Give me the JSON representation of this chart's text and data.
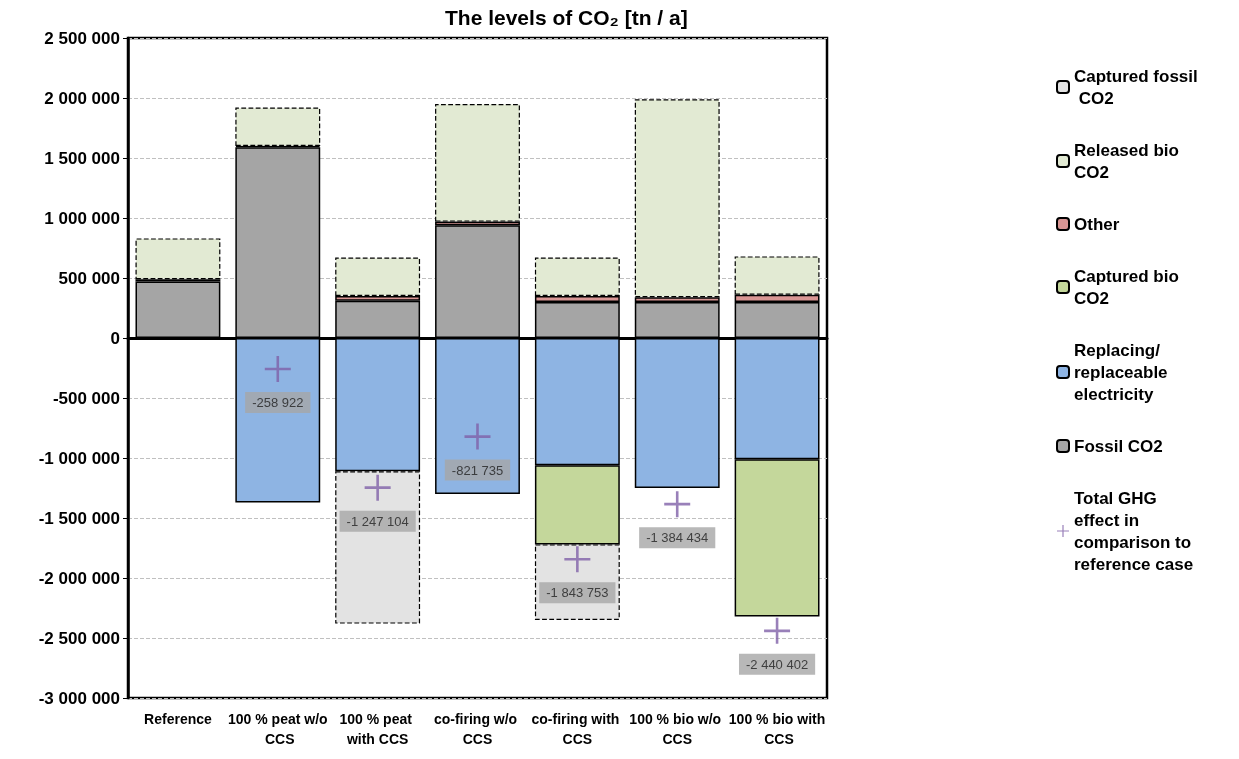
{
  "chart_data": {
    "type": "bar",
    "title": "The levels of CO₂ [tn / a]",
    "stacked": true,
    "categories": [
      "Reference",
      "100 % peat w/o CCS",
      "100 % peat with CCS",
      "co-firing w/o CCS",
      "co-firing with CCS",
      "100 % bio w/o CCS",
      "100 % bio with CCS"
    ],
    "series": [
      {
        "name": "Fossil CO2",
        "color": "#a5a5a5",
        "values": [
          470000,
          1590000,
          310000,
          940000,
          300000,
          300000,
          300000
        ]
      },
      {
        "name": "Replacing/replaceable electricity",
        "color": "#8eb4e3",
        "values": [
          null,
          -1370000,
          -1110000,
          -1300000,
          -1060000,
          -1250000,
          -1010000
        ]
      },
      {
        "name": "Captured bio CO2",
        "color": "#c4d79b",
        "values": [
          null,
          null,
          null,
          null,
          -660000,
          null,
          -1310000
        ]
      },
      {
        "name": "Other",
        "color": "#d99694",
        "values": [
          20000,
          10000,
          40000,
          30000,
          50000,
          40000,
          60000
        ]
      },
      {
        "name": "Released bio CO2",
        "color": "#e2ead3",
        "line_style": "dashed",
        "values": [
          340000,
          320000,
          320000,
          980000,
          320000,
          1650000,
          320000
        ]
      },
      {
        "name": "Captured fossil CO2",
        "color": "#e3e3e3",
        "line_style": "dashed",
        "values": [
          null,
          null,
          -1270000,
          null,
          -630000,
          null,
          null
        ]
      },
      {
        "name": "Total GHG effect in comparison to reference case",
        "type": "scatter",
        "marker": "cross",
        "color": "#7f60a8",
        "values": [
          null,
          -258922,
          -1247104,
          -821735,
          -1843753,
          -1384434,
          -2440402
        ],
        "value_labels": [
          null,
          "-258 922",
          "-1 247 104",
          "-821 735",
          "-1 843 753",
          "-1 384 434",
          "-2 440 402"
        ]
      }
    ],
    "ylim": [
      -3000000,
      2500000
    ],
    "yticks": [
      {
        "value": -3000000,
        "label": "-3 000 000"
      },
      {
        "value": -2500000,
        "label": "-2 500 000"
      },
      {
        "value": -2000000,
        "label": "-2 000 000"
      },
      {
        "value": -1500000,
        "label": "-1 500 000"
      },
      {
        "value": -1000000,
        "label": "-1 000 000"
      },
      {
        "value": -500000,
        "label": "-500 000"
      },
      0,
      {
        "value": 500000,
        "label": "500 000"
      },
      {
        "value": 1000000,
        "label": "1 000 000"
      },
      {
        "value": 1500000,
        "label": "1 500 000"
      },
      {
        "value": 2000000,
        "label": "2 000 000"
      },
      {
        "value": 2500000,
        "label": "2 500 000"
      }
    ],
    "grid": "y",
    "legend": "right"
  }
}
